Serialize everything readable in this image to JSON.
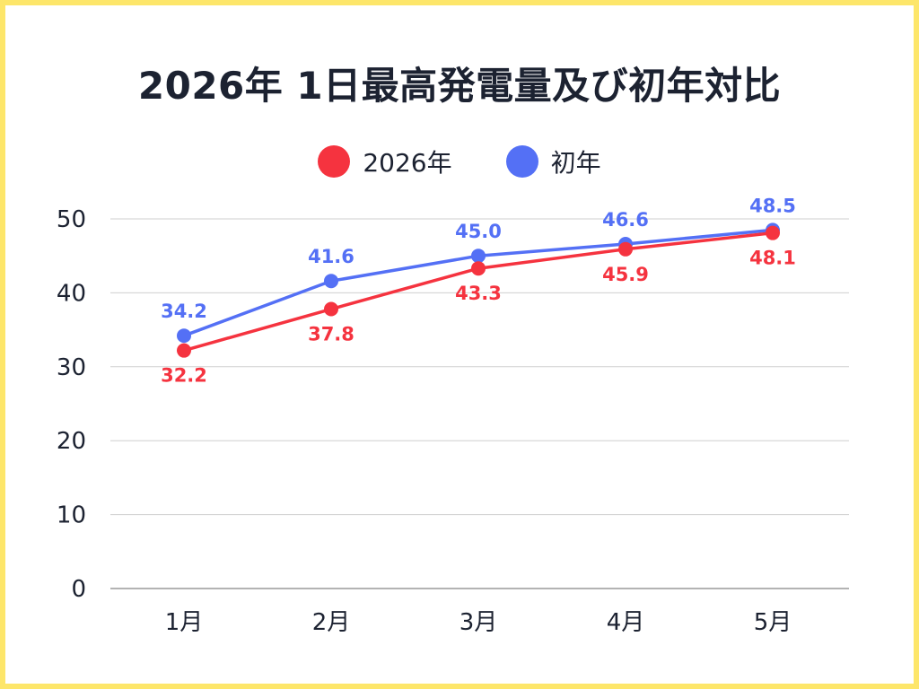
{
  "title": "2026年 1日最高発電量及び初年対比",
  "chart_data": {
    "type": "line",
    "title": "2026年 1日最高発電量及び初年対比",
    "categories": [
      "1月",
      "2月",
      "3月",
      "4月",
      "5月"
    ],
    "series": [
      {
        "name": "2026年",
        "values": [
          32.2,
          37.8,
          43.3,
          45.9,
          48.1
        ],
        "color": "#f5333f",
        "label_position": "below"
      },
      {
        "name": "初年",
        "values": [
          34.2,
          41.6,
          45.0,
          46.6,
          48.5
        ],
        "color": "#5470f5",
        "label_position": "above"
      }
    ],
    "y_ticks": [
      "0",
      "10",
      "20",
      "30",
      "40",
      "50"
    ],
    "ylim": [
      0,
      50
    ],
    "grid": true,
    "legend_position": "top-center"
  },
  "colors": {
    "border": "#fde66a",
    "title": "#1c2231",
    "grid": "#cfcfcf"
  }
}
